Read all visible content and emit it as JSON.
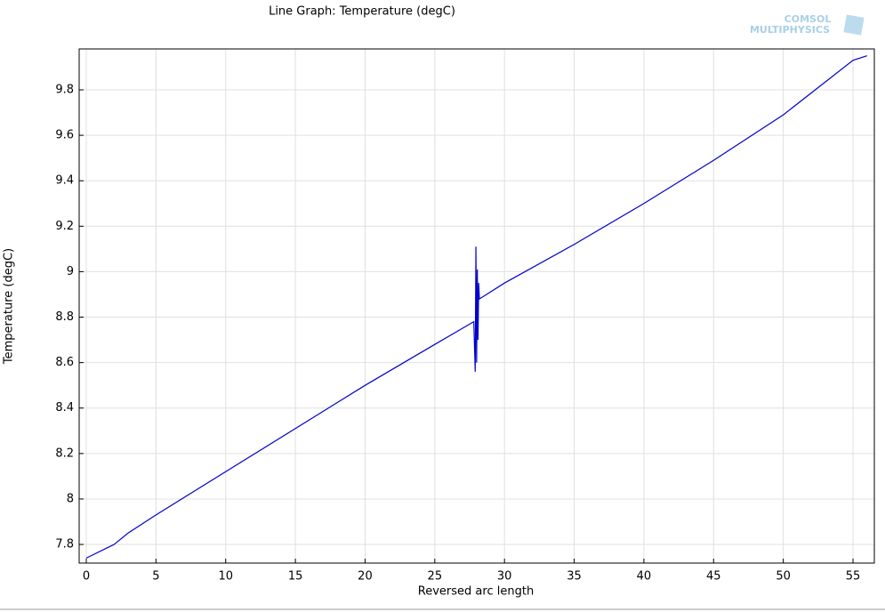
{
  "chart_data": {
    "type": "line",
    "title": "Line Graph: Temperature (degC)",
    "watermark": [
      "COMSOL",
      "MULTIPHYSICS"
    ],
    "xlabel": "Reversed arc length",
    "ylabel": "Temperature (degC)",
    "x": [
      0,
      2,
      3,
      5,
      10,
      15,
      20,
      25,
      27.8,
      27.9,
      27.95,
      28.0,
      28.05,
      28.1,
      28.15,
      28.2,
      30,
      35,
      40,
      45,
      50,
      55,
      56
    ],
    "series": [
      {
        "name": "Temperature",
        "color": "#0000cc",
        "values": [
          7.74,
          7.8,
          7.85,
          7.93,
          8.12,
          8.31,
          8.5,
          8.68,
          8.78,
          8.56,
          9.11,
          8.6,
          9.01,
          8.7,
          8.95,
          8.88,
          8.95,
          9.12,
          9.3,
          9.49,
          9.69,
          9.93,
          9.95
        ]
      }
    ],
    "xlim": [
      -0.51,
      56.53
    ],
    "ylim": [
      7.718,
      9.98
    ],
    "xticks": [
      0,
      5,
      10,
      15,
      20,
      25,
      30,
      35,
      40,
      45,
      50,
      55
    ],
    "yticks": [
      7.8,
      8,
      8.2,
      8.4,
      8.6,
      8.8,
      9,
      9.2,
      9.4,
      9.6,
      9.8
    ],
    "grid": true
  }
}
